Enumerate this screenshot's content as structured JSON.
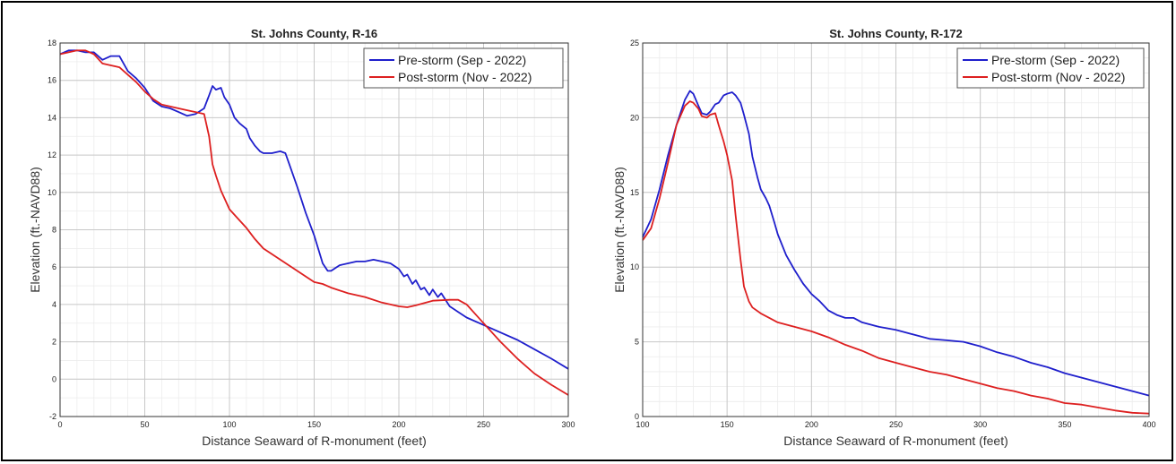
{
  "chart_data": [
    {
      "type": "line",
      "title": "St. Johns County, R-16",
      "xlabel": "Distance Seaward of R-monument (feet)",
      "ylabel": "Elevation (ft.-NAVD88)",
      "xlim": [
        0,
        300
      ],
      "ylim": [
        -2,
        18
      ],
      "xticks": [
        0,
        50,
        100,
        150,
        200,
        250,
        300
      ],
      "yticks": [
        -2,
        0,
        2,
        4,
        6,
        8,
        10,
        12,
        14,
        16,
        18
      ],
      "xminor": 10,
      "yminor": 1,
      "grid": true,
      "legend_position": "top-right",
      "series": [
        {
          "name": "Pre-storm (Sep - 2022)",
          "color": "#1f1fcc",
          "x": [
            0,
            5,
            10,
            15,
            20,
            25,
            30,
            35,
            40,
            45,
            50,
            55,
            60,
            65,
            70,
            75,
            80,
            85,
            88,
            90,
            92,
            95,
            97,
            100,
            103,
            106,
            110,
            112,
            115,
            118,
            120,
            125,
            130,
            133,
            135,
            140,
            145,
            150,
            155,
            158,
            160,
            165,
            170,
            175,
            180,
            185,
            190,
            195,
            200,
            203,
            205,
            208,
            210,
            213,
            215,
            218,
            220,
            223,
            225,
            230,
            235,
            240,
            250,
            260,
            270,
            280,
            290,
            300
          ],
          "y": [
            17.4,
            17.6,
            17.6,
            17.5,
            17.5,
            17.1,
            17.3,
            17.3,
            16.5,
            16.1,
            15.6,
            14.9,
            14.6,
            14.5,
            14.3,
            14.1,
            14.2,
            14.5,
            15.2,
            15.7,
            15.5,
            15.6,
            15.1,
            14.7,
            14.0,
            13.7,
            13.4,
            12.9,
            12.5,
            12.2,
            12.1,
            12.1,
            12.2,
            12.1,
            11.6,
            10.3,
            8.9,
            7.7,
            6.2,
            5.8,
            5.8,
            6.1,
            6.2,
            6.3,
            6.3,
            6.4,
            6.3,
            6.2,
            5.9,
            5.5,
            5.6,
            5.1,
            5.3,
            4.8,
            4.9,
            4.5,
            4.8,
            4.4,
            4.6,
            3.9,
            3.6,
            3.3,
            2.9,
            2.5,
            2.1,
            1.6,
            1.1,
            0.55
          ]
        },
        {
          "name": "Post-storm (Nov - 2022)",
          "color": "#dd2020",
          "x": [
            0,
            5,
            10,
            15,
            20,
            25,
            30,
            35,
            40,
            45,
            50,
            55,
            60,
            65,
            70,
            75,
            80,
            85,
            88,
            90,
            92,
            95,
            100,
            105,
            110,
            115,
            120,
            130,
            140,
            150,
            155,
            160,
            170,
            180,
            190,
            200,
            205,
            210,
            220,
            230,
            235,
            240,
            245,
            250,
            260,
            270,
            280,
            290,
            300
          ],
          "y": [
            17.4,
            17.5,
            17.6,
            17.6,
            17.4,
            16.9,
            16.8,
            16.7,
            16.3,
            15.9,
            15.4,
            15.0,
            14.7,
            14.6,
            14.5,
            14.4,
            14.3,
            14.2,
            13.0,
            11.5,
            10.9,
            10.1,
            9.1,
            8.6,
            8.1,
            7.5,
            7.0,
            6.4,
            5.8,
            5.2,
            5.1,
            4.9,
            4.6,
            4.4,
            4.1,
            3.9,
            3.85,
            3.95,
            4.2,
            4.25,
            4.25,
            4.0,
            3.5,
            3.0,
            2.0,
            1.1,
            0.3,
            -0.3,
            -0.85
          ]
        }
      ]
    },
    {
      "type": "line",
      "title": "St. Johns County, R-172",
      "xlabel": "Distance Seaward of R-monument (feet)",
      "ylabel": "Elevation (ft.-NAVD88)",
      "xlim": [
        100,
        400
      ],
      "ylim": [
        0,
        25
      ],
      "xticks": [
        100,
        150,
        200,
        250,
        300,
        350,
        400
      ],
      "yticks": [
        0,
        5,
        10,
        15,
        20,
        25
      ],
      "xminor": 10,
      "yminor": 1,
      "grid": true,
      "legend_position": "top-right",
      "series": [
        {
          "name": "Pre-storm (Sep - 2022)",
          "color": "#1f1fcc",
          "x": [
            100,
            105,
            110,
            115,
            120,
            125,
            128,
            130,
            133,
            135,
            138,
            140,
            143,
            145,
            148,
            150,
            153,
            155,
            158,
            160,
            163,
            165,
            168,
            170,
            173,
            175,
            178,
            180,
            185,
            190,
            195,
            200,
            205,
            210,
            215,
            220,
            225,
            230,
            240,
            250,
            260,
            270,
            280,
            290,
            300,
            310,
            320,
            330,
            340,
            350,
            360,
            370,
            380,
            390,
            400
          ],
          "y": [
            12.0,
            13.2,
            15.2,
            17.5,
            19.5,
            21.2,
            21.8,
            21.6,
            20.8,
            20.3,
            20.2,
            20.4,
            20.9,
            21.0,
            21.5,
            21.6,
            21.7,
            21.5,
            21.0,
            20.2,
            18.9,
            17.4,
            16.0,
            15.2,
            14.6,
            14.1,
            13.0,
            12.2,
            10.8,
            9.8,
            8.9,
            8.2,
            7.7,
            7.1,
            6.8,
            6.6,
            6.6,
            6.3,
            6.0,
            5.8,
            5.5,
            5.2,
            5.1,
            5.0,
            4.7,
            4.3,
            4.0,
            3.6,
            3.3,
            2.9,
            2.6,
            2.3,
            2.0,
            1.7,
            1.4
          ]
        },
        {
          "name": "Post-storm (Nov - 2022)",
          "color": "#dd2020",
          "x": [
            100,
            105,
            110,
            115,
            120,
            125,
            128,
            130,
            133,
            135,
            138,
            140,
            143,
            145,
            148,
            150,
            153,
            155,
            158,
            160,
            163,
            165,
            170,
            175,
            180,
            190,
            200,
            210,
            220,
            230,
            240,
            250,
            260,
            270,
            280,
            290,
            300,
            310,
            320,
            330,
            340,
            350,
            360,
            370,
            380,
            390,
            400
          ],
          "y": [
            11.8,
            12.6,
            14.6,
            17.0,
            19.5,
            20.8,
            21.1,
            21.0,
            20.6,
            20.1,
            20.0,
            20.2,
            20.3,
            19.5,
            18.4,
            17.5,
            15.8,
            13.5,
            10.5,
            8.7,
            7.7,
            7.3,
            6.9,
            6.6,
            6.3,
            6.0,
            5.7,
            5.3,
            4.8,
            4.4,
            3.9,
            3.6,
            3.3,
            3.0,
            2.8,
            2.5,
            2.2,
            1.9,
            1.7,
            1.4,
            1.2,
            0.9,
            0.8,
            0.6,
            0.4,
            0.25,
            0.2
          ]
        }
      ]
    }
  ]
}
